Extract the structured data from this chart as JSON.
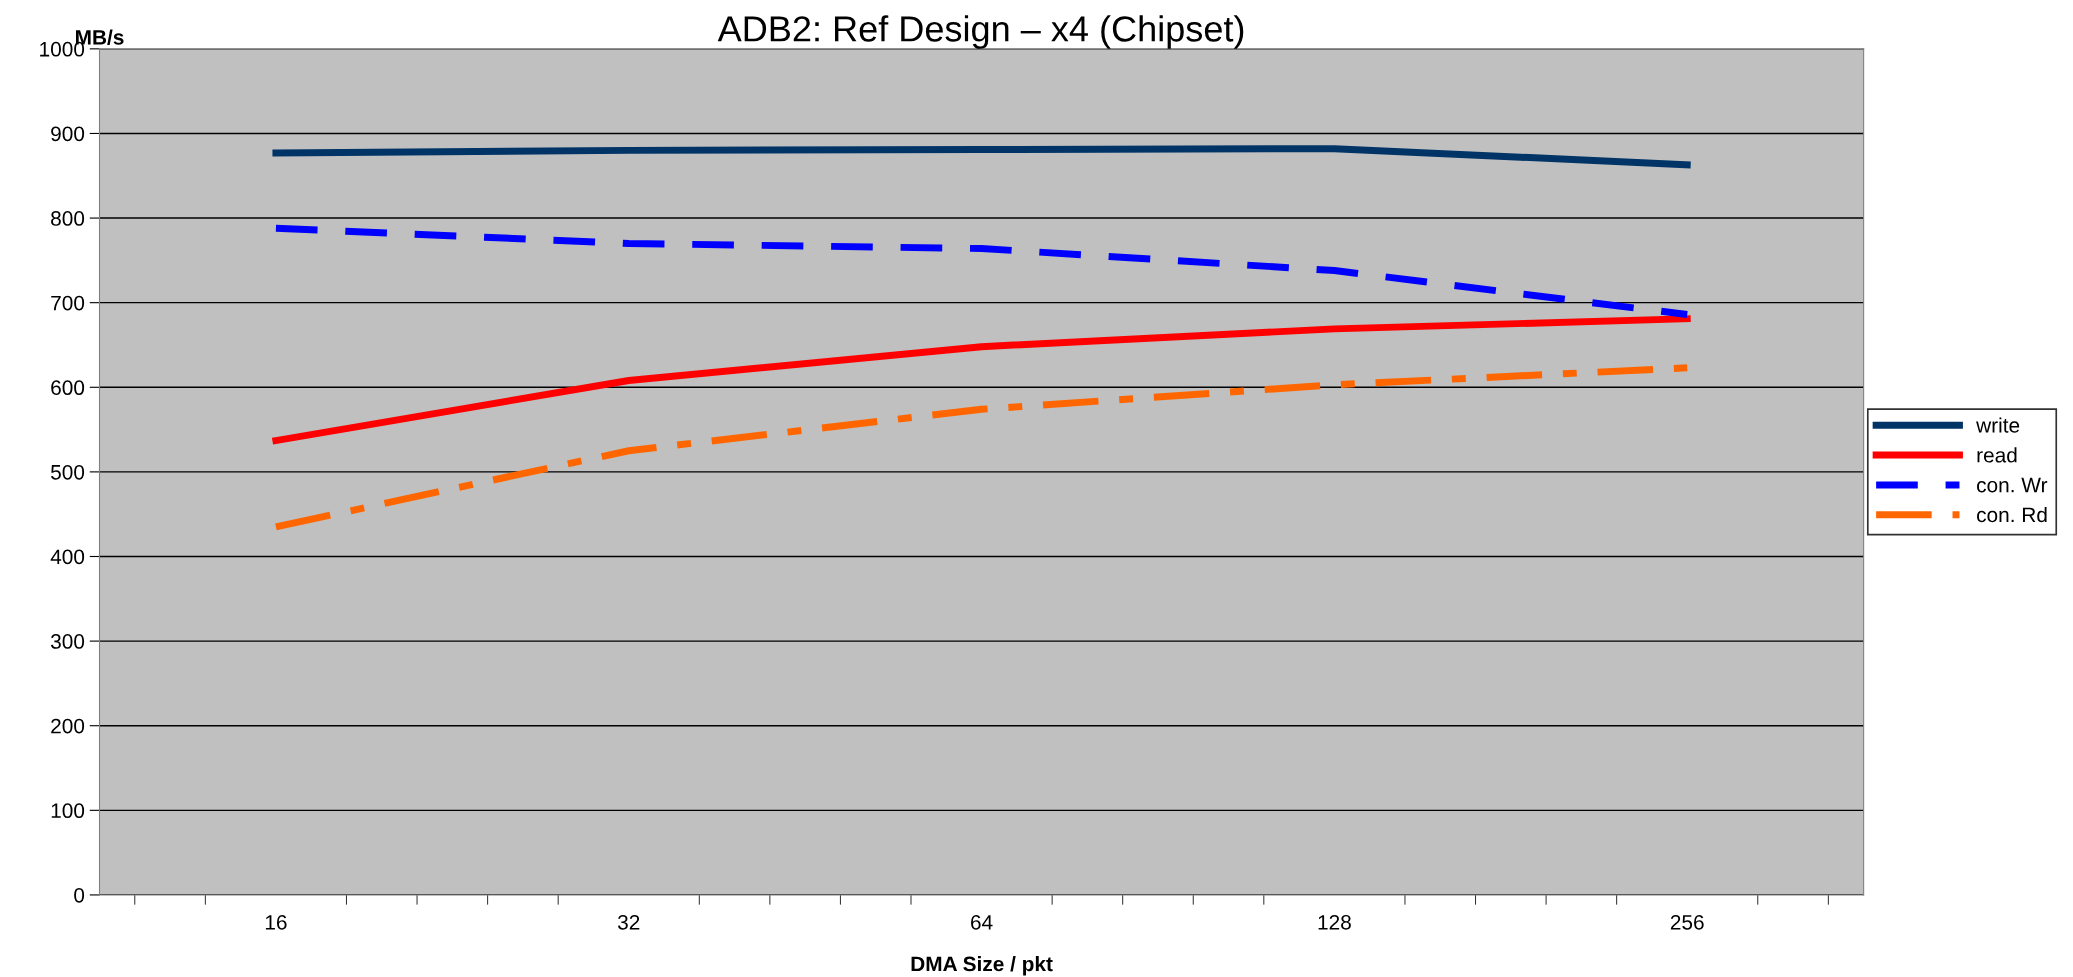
{
  "chart_data": {
    "type": "line",
    "title": "ADB2: Ref Design – x4 (Chipset)",
    "xlabel": "DMA Size / pkt",
    "ylabel": "MB/s",
    "categories": [
      "16",
      "32",
      "64",
      "128",
      "256"
    ],
    "series": [
      {
        "name": "write",
        "color": "#003366",
        "values": [
          877,
          880,
          881,
          882,
          863
        ],
        "line_style": "solid"
      },
      {
        "name": "read",
        "color": "#ff0000",
        "values": [
          537,
          608,
          648,
          669,
          681
        ],
        "line_style": "solid"
      },
      {
        "name": "con. Wr",
        "color": "#0000ff",
        "values": [
          788,
          770,
          764,
          738,
          686
        ],
        "line_style": "dashed"
      },
      {
        "name": "con. Rd",
        "color": "#ff6600",
        "values": [
          435,
          525,
          574,
          603,
          623
        ],
        "line_style": "dashdot"
      }
    ],
    "ylim": [
      0,
      1000
    ],
    "yticks": [
      0,
      100,
      200,
      300,
      400,
      500,
      600,
      700,
      800,
      900,
      1000
    ],
    "grid": "y",
    "legend": "right",
    "marker": "none"
  }
}
